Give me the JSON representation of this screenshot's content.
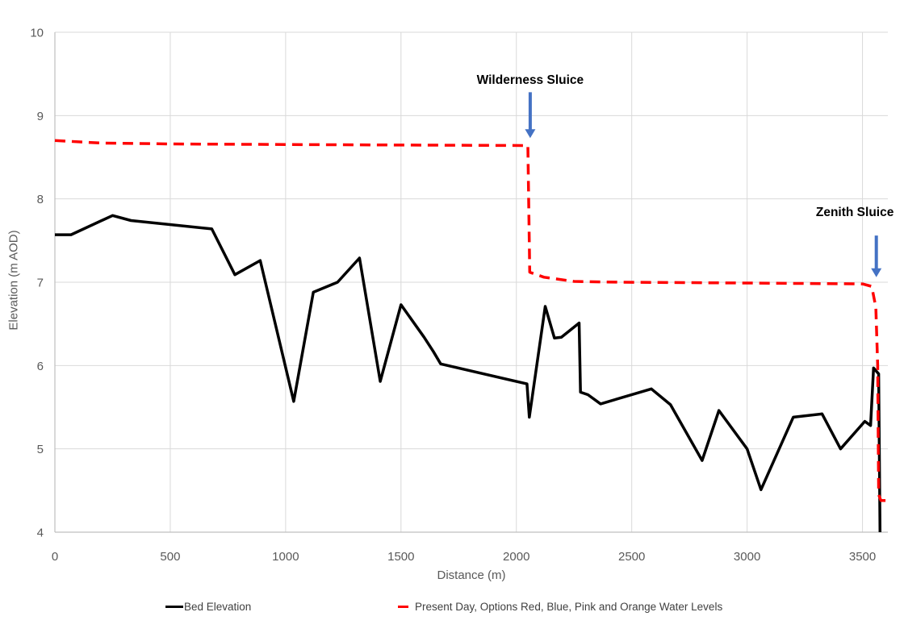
{
  "chart_data": {
    "type": "line",
    "title": "",
    "xlabel": "Distance (m)",
    "ylabel": "Elevation (m AOD)",
    "xlim": [
      0,
      3610
    ],
    "ylim": [
      4,
      10
    ],
    "x_ticks": [
      0,
      500,
      1000,
      1500,
      2000,
      2500,
      3000,
      3500
    ],
    "y_ticks": [
      4,
      5,
      6,
      7,
      8,
      9,
      10
    ],
    "grid": true,
    "legend_position": "bottom",
    "series": [
      {
        "name": "Bed Elevation",
        "color": "#000000",
        "style": "solid",
        "points": [
          [
            0,
            7.57
          ],
          [
            70,
            7.57
          ],
          [
            250,
            7.8
          ],
          [
            330,
            7.74
          ],
          [
            680,
            7.64
          ],
          [
            780,
            7.09
          ],
          [
            890,
            7.26
          ],
          [
            1035,
            5.57
          ],
          [
            1120,
            6.88
          ],
          [
            1225,
            7.0
          ],
          [
            1320,
            7.29
          ],
          [
            1410,
            5.81
          ],
          [
            1500,
            6.73
          ],
          [
            1600,
            6.34
          ],
          [
            1640,
            6.17
          ],
          [
            1672,
            6.02
          ],
          [
            2046,
            5.78
          ],
          [
            2056,
            5.38
          ],
          [
            2125,
            6.71
          ],
          [
            2165,
            6.33
          ],
          [
            2195,
            6.34
          ],
          [
            2272,
            6.51
          ],
          [
            2278,
            5.68
          ],
          [
            2310,
            5.65
          ],
          [
            2365,
            5.54
          ],
          [
            2585,
            5.72
          ],
          [
            2668,
            5.53
          ],
          [
            2805,
            4.86
          ],
          [
            2878,
            5.46
          ],
          [
            3000,
            5.0
          ],
          [
            3060,
            4.51
          ],
          [
            3200,
            5.38
          ],
          [
            3325,
            5.42
          ],
          [
            3405,
            5.0
          ],
          [
            3510,
            5.33
          ],
          [
            3535,
            5.28
          ],
          [
            3548,
            5.97
          ],
          [
            3570,
            5.9
          ],
          [
            3576,
            4.0
          ]
        ]
      },
      {
        "name": "Present Day, Options Red, Blue, Pink and Orange Water Levels",
        "color": "#FF0000",
        "style": "dashed",
        "points": [
          [
            0,
            8.7
          ],
          [
            200,
            8.67
          ],
          [
            500,
            8.66
          ],
          [
            1200,
            8.65
          ],
          [
            2050,
            8.64
          ],
          [
            2058,
            7.12
          ],
          [
            2120,
            7.06
          ],
          [
            2250,
            7.01
          ],
          [
            2450,
            7.0
          ],
          [
            3000,
            6.99
          ],
          [
            3500,
            6.98
          ],
          [
            3540,
            6.95
          ],
          [
            3558,
            6.7
          ],
          [
            3566,
            6.0
          ],
          [
            3570,
            4.45
          ],
          [
            3580,
            4.38
          ],
          [
            3608,
            4.38
          ]
        ]
      }
    ],
    "annotations": [
      {
        "label": "Wilderness Sluice",
        "arrow_x": 2060,
        "arrow_from_elev": 9.28,
        "arrow_to_elev": 8.73,
        "label_x": 2060,
        "label_elev": 9.42,
        "arrow_color": "#4472C4"
      },
      {
        "label": "Zenith Sluice",
        "arrow_x": 3560,
        "arrow_from_elev": 7.56,
        "arrow_to_elev": 7.06,
        "label_x": 3467,
        "label_elev": 7.83,
        "arrow_color": "#4472C4"
      }
    ]
  },
  "colors": {
    "bed_line": "#000000",
    "water_line": "#FF0000",
    "arrow_blue": "#4472C4",
    "gridline": "#D9D9D9",
    "axis_line": "#BFBFBF",
    "tick_text": "#595959",
    "legend_text": "#404040",
    "background": "#FFFFFF"
  }
}
